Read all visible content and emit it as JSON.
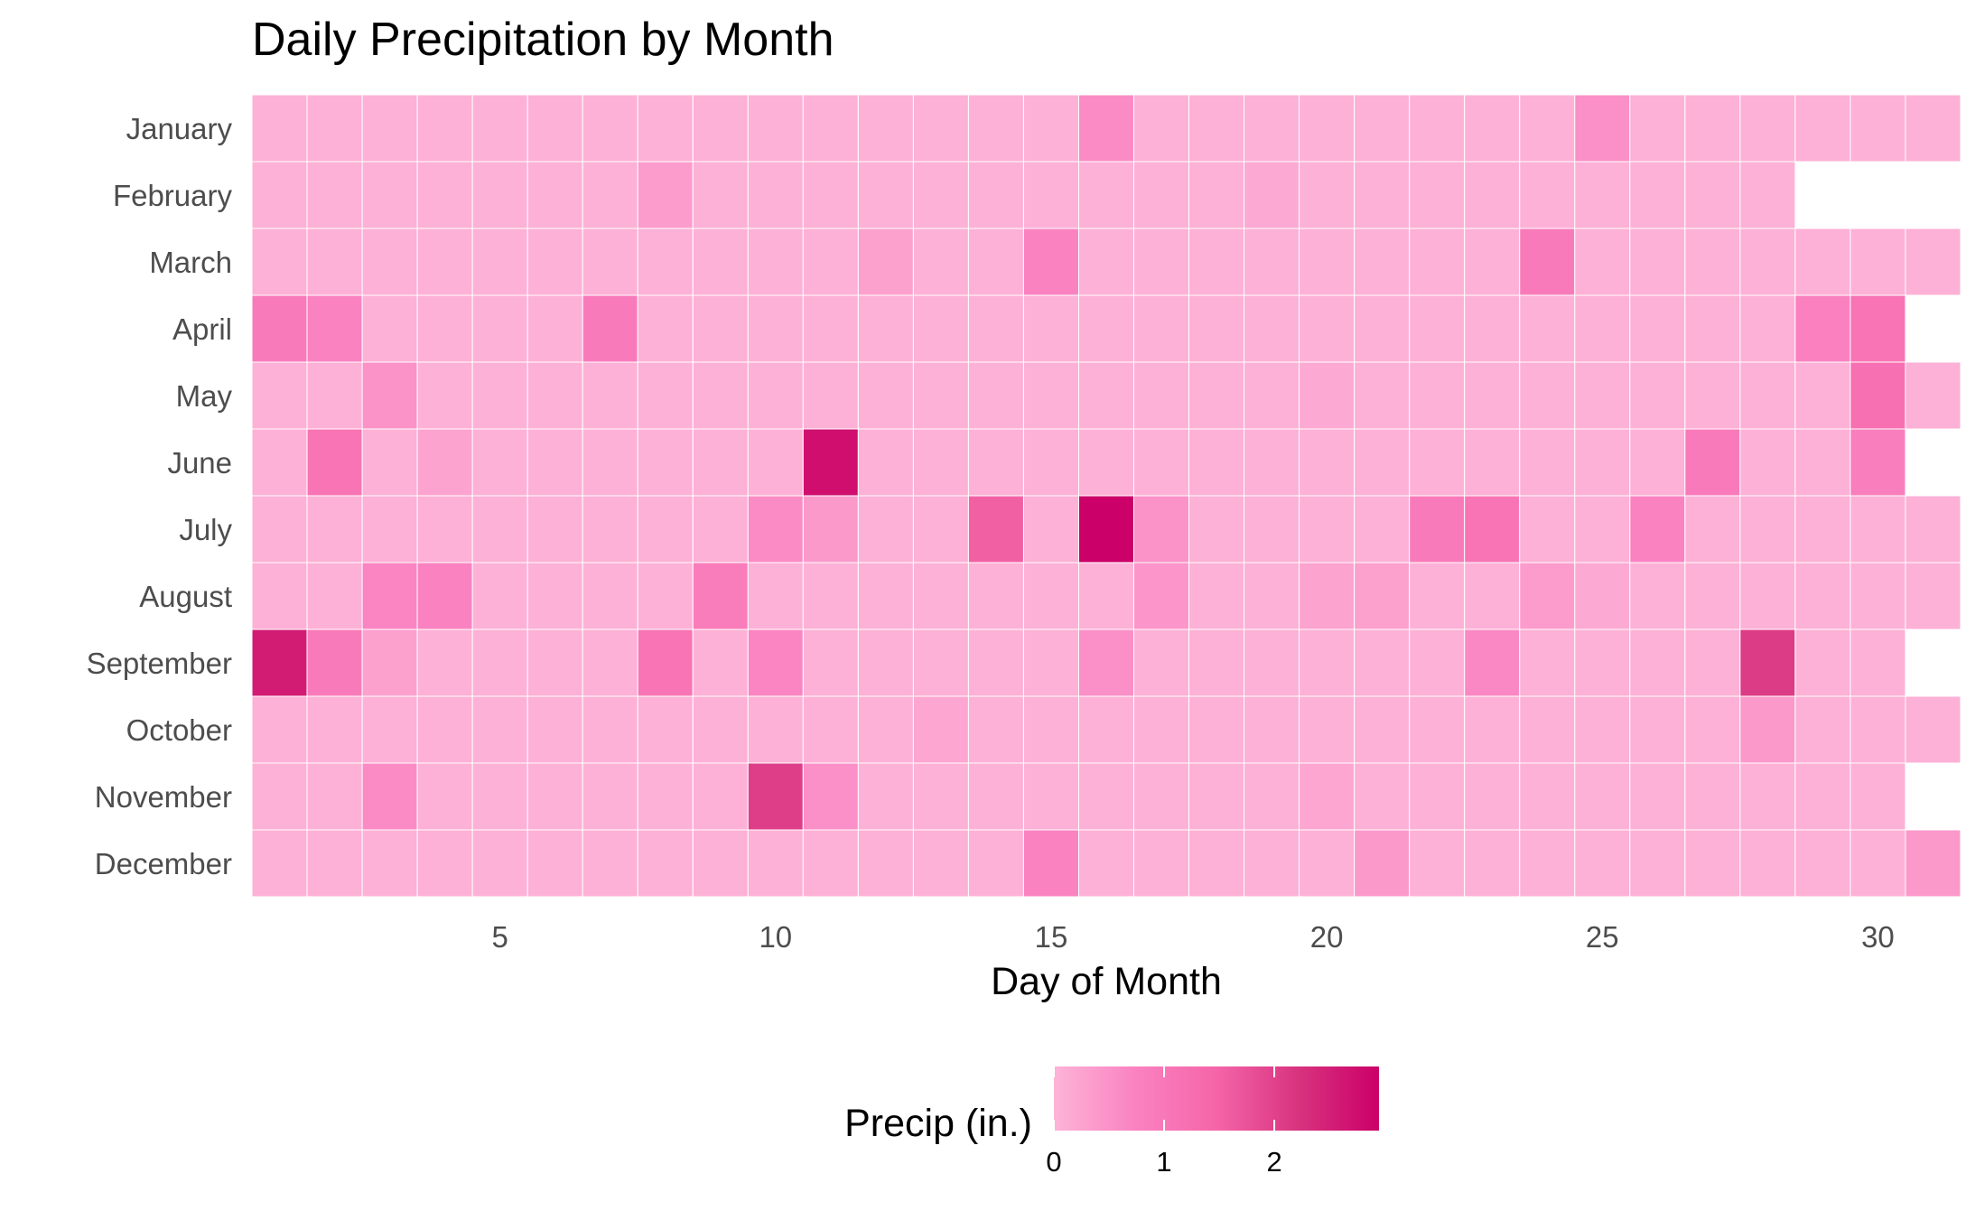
{
  "chart_data": {
    "type": "heatmap",
    "title": "Daily Precipitation by Month",
    "xlabel": "Day of Month",
    "ylabel": "",
    "x_ticks": [
      5,
      10,
      15,
      20,
      25,
      30
    ],
    "x_range": [
      1,
      31
    ],
    "months": [
      "January",
      "February",
      "March",
      "April",
      "May",
      "June",
      "July",
      "August",
      "September",
      "October",
      "November",
      "December"
    ],
    "days_in_month": [
      31,
      28,
      31,
      30,
      31,
      30,
      31,
      31,
      30,
      31,
      30,
      31
    ],
    "values": [
      [
        0.05,
        0.05,
        0.05,
        0.05,
        0.05,
        0.05,
        0.05,
        0.05,
        0.05,
        0.05,
        0.05,
        0.05,
        0.05,
        0.05,
        0.05,
        0.6,
        0.05,
        0.05,
        0.05,
        0.05,
        0.05,
        0.05,
        0.05,
        0.05,
        0.55,
        0.05,
        0.05,
        0.05,
        0.05,
        0.05,
        0.05
      ],
      [
        0.05,
        0.05,
        0.05,
        0.05,
        0.05,
        0.05,
        0.05,
        0.35,
        0.05,
        0.05,
        0.05,
        0.05,
        0.05,
        0.05,
        0.05,
        0.05,
        0.05,
        0.05,
        0.15,
        0.05,
        0.05,
        0.05,
        0.05,
        0.05,
        0.05,
        0.05,
        0.05,
        0.05
      ],
      [
        0.05,
        0.05,
        0.05,
        0.05,
        0.05,
        0.05,
        0.05,
        0.05,
        0.05,
        0.05,
        0.05,
        0.3,
        0.05,
        0.05,
        0.75,
        0.05,
        0.05,
        0.05,
        0.05,
        0.05,
        0.05,
        0.05,
        0.05,
        0.95,
        0.05,
        0.05,
        0.05,
        0.05,
        0.05,
        0.05,
        0.05
      ],
      [
        0.95,
        0.75,
        0.05,
        0.05,
        0.05,
        0.05,
        0.95,
        0.05,
        0.05,
        0.05,
        0.05,
        0.05,
        0.05,
        0.05,
        0.05,
        0.05,
        0.05,
        0.05,
        0.05,
        0.05,
        0.05,
        0.05,
        0.05,
        0.05,
        0.05,
        0.05,
        0.05,
        0.05,
        0.8,
        1.1
      ],
      [
        0.05,
        0.05,
        0.5,
        0.05,
        0.05,
        0.05,
        0.05,
        0.05,
        0.05,
        0.05,
        0.05,
        0.05,
        0.05,
        0.05,
        0.05,
        0.05,
        0.05,
        0.05,
        0.05,
        0.15,
        0.05,
        0.05,
        0.05,
        0.05,
        0.05,
        0.05,
        0.05,
        0.05,
        0.05,
        1.2,
        0.05
      ],
      [
        0.05,
        1.1,
        0.05,
        0.25,
        0.05,
        0.05,
        0.05,
        0.05,
        0.05,
        0.05,
        2.75,
        0.05,
        0.05,
        0.05,
        0.05,
        0.05,
        0.05,
        0.05,
        0.05,
        0.05,
        0.05,
        0.05,
        0.05,
        0.05,
        0.05,
        0.05,
        0.95,
        0.05,
        0.05,
        0.85
      ],
      [
        0.05,
        0.05,
        0.05,
        0.05,
        0.05,
        0.05,
        0.05,
        0.05,
        0.05,
        0.6,
        0.4,
        0.05,
        0.05,
        1.55,
        0.05,
        2.95,
        0.5,
        0.05,
        0.05,
        0.05,
        0.05,
        0.95,
        1.1,
        0.05,
        0.05,
        0.75,
        0.05,
        0.05,
        0.05,
        0.05,
        0.05
      ],
      [
        0.05,
        0.05,
        0.7,
        0.75,
        0.05,
        0.05,
        0.05,
        0.05,
        0.9,
        0.05,
        0.05,
        0.05,
        0.05,
        0.05,
        0.05,
        0.05,
        0.45,
        0.05,
        0.05,
        0.25,
        0.3,
        0.05,
        0.05,
        0.35,
        0.15,
        0.05,
        0.05,
        0.05,
        0.05,
        0.05,
        0.05
      ],
      [
        2.55,
        0.95,
        0.3,
        0.05,
        0.05,
        0.05,
        0.05,
        1.1,
        0.05,
        0.7,
        0.05,
        0.05,
        0.05,
        0.05,
        0.05,
        0.55,
        0.05,
        0.05,
        0.05,
        0.05,
        0.05,
        0.05,
        0.65,
        0.05,
        0.05,
        0.05,
        0.05,
        2.1,
        0.05,
        0.05
      ],
      [
        0.05,
        0.05,
        0.05,
        0.05,
        0.05,
        0.05,
        0.05,
        0.05,
        0.05,
        0.05,
        0.05,
        0.05,
        0.2,
        0.05,
        0.05,
        0.05,
        0.05,
        0.05,
        0.05,
        0.05,
        0.05,
        0.05,
        0.05,
        0.05,
        0.05,
        0.05,
        0.05,
        0.4,
        0.05,
        0.05,
        0.05
      ],
      [
        0.05,
        0.05,
        0.6,
        0.05,
        0.05,
        0.05,
        0.05,
        0.05,
        0.05,
        2.05,
        0.55,
        0.05,
        0.05,
        0.05,
        0.05,
        0.05,
        0.05,
        0.05,
        0.05,
        0.2,
        0.05,
        0.05,
        0.05,
        0.05,
        0.05,
        0.05,
        0.05,
        0.05,
        0.05,
        0.05
      ],
      [
        0.05,
        0.05,
        0.05,
        0.05,
        0.05,
        0.05,
        0.05,
        0.05,
        0.05,
        0.05,
        0.05,
        0.05,
        0.05,
        0.05,
        0.75,
        0.05,
        0.05,
        0.05,
        0.05,
        0.05,
        0.4,
        0.05,
        0.05,
        0.05,
        0.05,
        0.05,
        0.05,
        0.05,
        0.05,
        0.05,
        0.4
      ]
    ],
    "color_scale": {
      "min": 0,
      "max": 2.95,
      "colors": [
        "#fdb4d7",
        "#fa82c1",
        "#f565a8",
        "#d8337f",
        "#cb0068"
      ]
    },
    "legend": {
      "title": "Precip (in.)",
      "ticks": [
        0,
        1,
        2
      ],
      "placement": "bottom"
    },
    "grid": false
  }
}
